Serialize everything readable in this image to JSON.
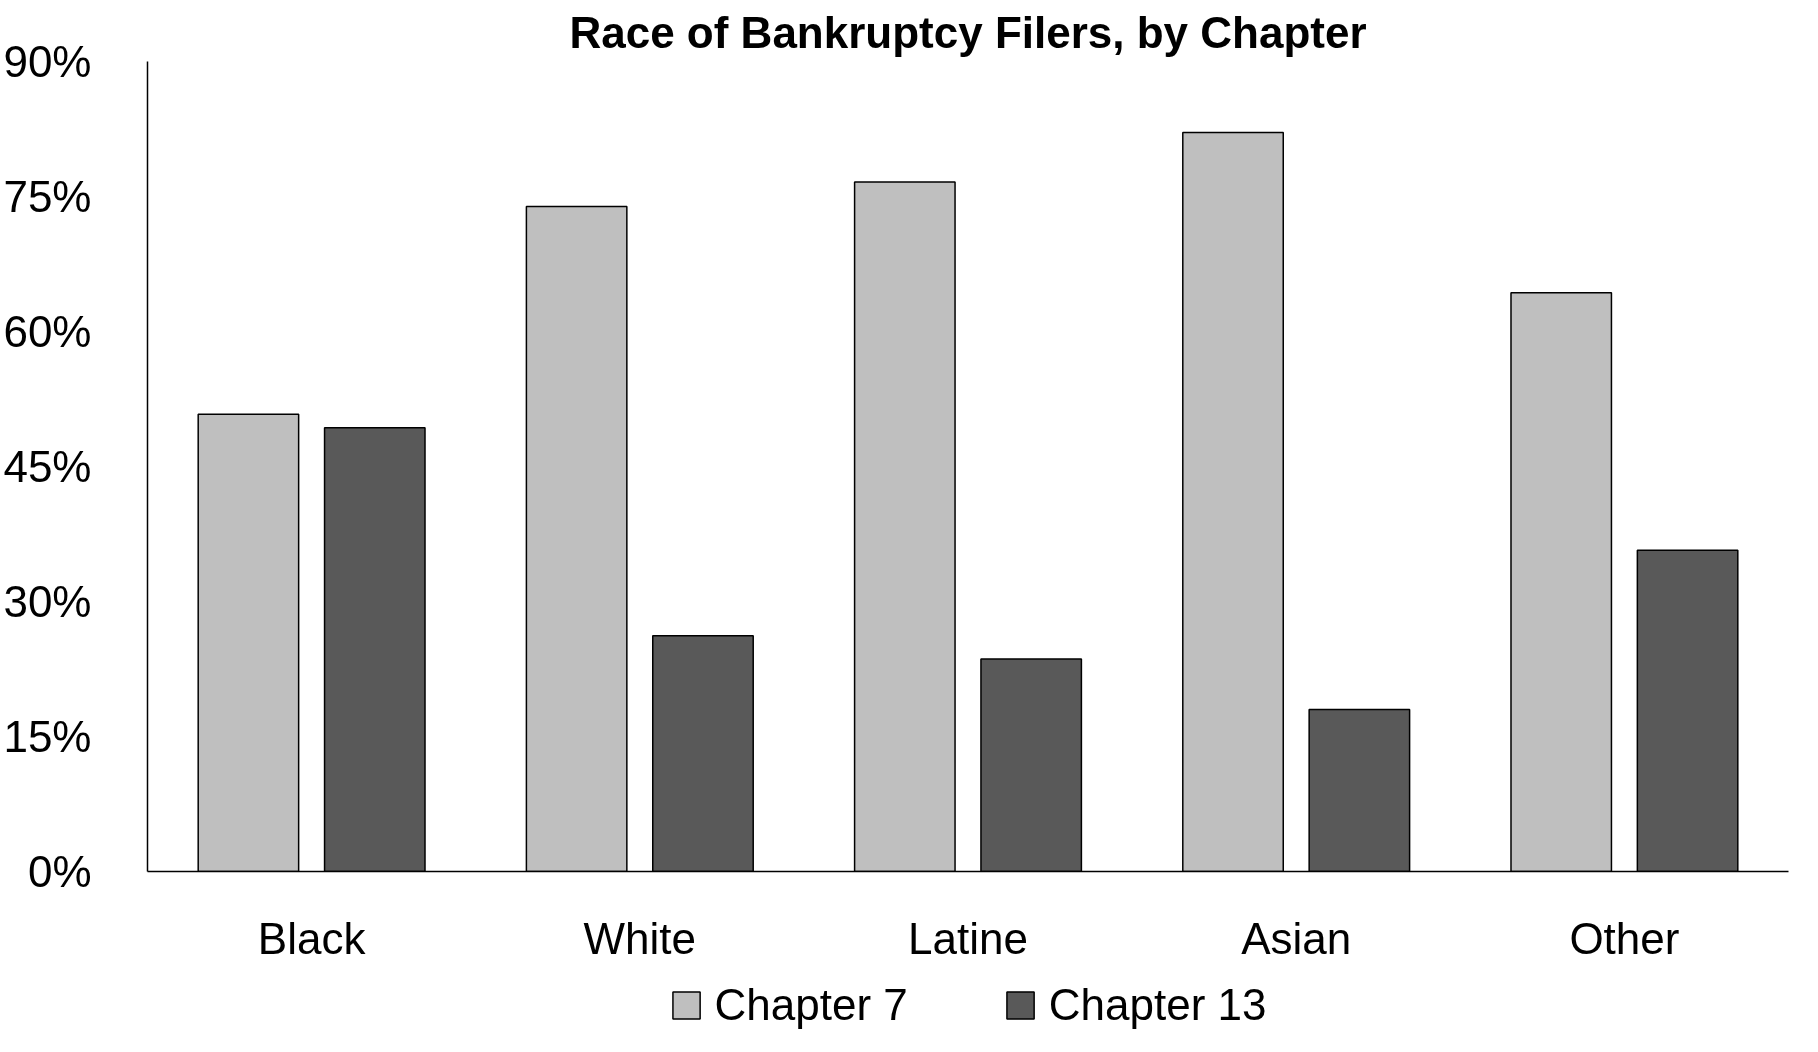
{
  "chart_data": {
    "type": "bar",
    "title": "Race of Bankruptcy Filers, by Chapter",
    "categories": [
      "Black",
      "White",
      "Latine",
      "Asian",
      "Other"
    ],
    "series": [
      {
        "name": "Chapter 7",
        "color": "#bfbfbf",
        "values": [
          50.8,
          73.9,
          76.6,
          82.1,
          64.3
        ]
      },
      {
        "name": "Chapter 13",
        "color": "#595959",
        "values": [
          49.3,
          26.2,
          23.6,
          18.0,
          35.7
        ]
      }
    ],
    "ylim": [
      0,
      90
    ],
    "yticks": [
      {
        "value": 0,
        "label": "0%"
      },
      {
        "value": 15,
        "label": "15%"
      },
      {
        "value": 30,
        "label": "30%"
      },
      {
        "value": 45,
        "label": "45%"
      },
      {
        "value": 60,
        "label": "60%"
      },
      {
        "value": 75,
        "label": "75%"
      },
      {
        "value": 90,
        "label": "90%"
      }
    ],
    "legend": "bottom"
  }
}
